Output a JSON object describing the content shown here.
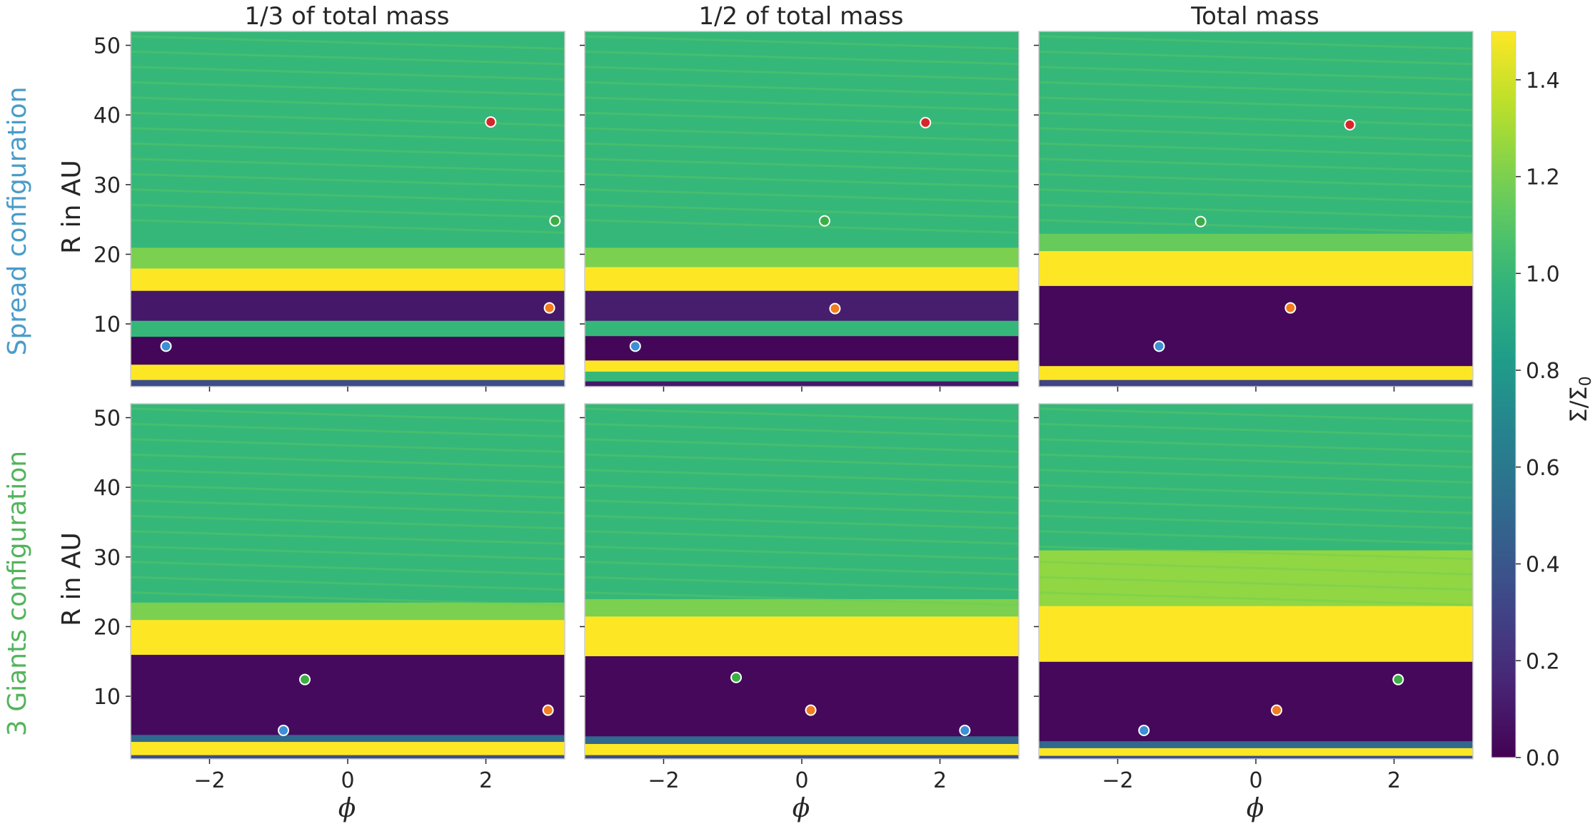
{
  "chart_data": {
    "type": "heatmap",
    "colormap": "viridis",
    "columns": [
      "1/3 of total mass",
      "1/2 of total mass",
      "Total mass"
    ],
    "rows": [
      {
        "label": "Spread configuration",
        "color": "#4a9cc9"
      },
      {
        "label": "3 Giants configuration",
        "color": "#54b35c"
      }
    ],
    "xlabel": "ϕ",
    "ylabel": "R in AU",
    "xlim": [
      -3.1416,
      3.1416
    ],
    "ylim": [
      1,
      52
    ],
    "xticks": [
      {
        "value": -2,
        "label": "−2"
      },
      {
        "value": 0,
        "label": "0"
      },
      {
        "value": 2,
        "label": "2"
      }
    ],
    "yticks": [
      {
        "value": 10,
        "label": "10"
      },
      {
        "value": 20,
        "label": "20"
      },
      {
        "value": 30,
        "label": "30"
      },
      {
        "value": 40,
        "label": "40"
      },
      {
        "value": 50,
        "label": "50"
      }
    ],
    "colorbar": {
      "label": "Σ/Σ",
      "label_sub": "0",
      "range": [
        0,
        1.5
      ],
      "ticks": [
        {
          "value": 0.0,
          "label": "0.0"
        },
        {
          "value": 0.2,
          "label": "0.2"
        },
        {
          "value": 0.4,
          "label": "0.4"
        },
        {
          "value": 0.6,
          "label": "0.6"
        },
        {
          "value": 0.8,
          "label": "0.8"
        },
        {
          "value": 1.0,
          "label": "1.0"
        },
        {
          "value": 1.2,
          "label": "1.2"
        },
        {
          "value": 1.4,
          "label": "1.4"
        }
      ]
    },
    "planet_colors": {
      "blue": "#3d8fd6",
      "orange": "#f27d1f",
      "green": "#3dae45",
      "red": "#d62728"
    },
    "panels": [
      {
        "row": 0,
        "col": 0,
        "bands": [
          {
            "r": [
              1,
              2
            ],
            "v": 0.35
          },
          {
            "r": [
              2,
              4.2
            ],
            "v": 1.55
          },
          {
            "r": [
              4.2,
              8.2
            ],
            "v": 0.02
          },
          {
            "r": [
              8.2,
              10.5
            ],
            "v": 1.0
          },
          {
            "r": [
              10.5,
              14.8
            ],
            "v": 0.1
          },
          {
            "r": [
              14.8,
              18
            ],
            "v": 1.55
          },
          {
            "r": [
              18,
              21
            ],
            "v": 1.2
          },
          {
            "r": [
              21,
              52
            ],
            "v": 1.0
          }
        ],
        "planets": [
          {
            "phi": -2.63,
            "r": 6.8,
            "color": "blue"
          },
          {
            "phi": 2.92,
            "r": 12.3,
            "color": "orange"
          },
          {
            "phi": 3.0,
            "r": 24.8,
            "color": "green"
          },
          {
            "phi": 2.07,
            "r": 39.0,
            "color": "red"
          }
        ]
      },
      {
        "row": 0,
        "col": 1,
        "bands": [
          {
            "r": [
              1,
              1.8
            ],
            "v": 0.1
          },
          {
            "r": [
              1.8,
              3.2
            ],
            "v": 1.0
          },
          {
            "r": [
              3.2,
              4.8
            ],
            "v": 1.55
          },
          {
            "r": [
              4.8,
              8.3
            ],
            "v": 0.02
          },
          {
            "r": [
              8.3,
              10.5
            ],
            "v": 1.0
          },
          {
            "r": [
              10.5,
              14.8
            ],
            "v": 0.12
          },
          {
            "r": [
              14.8,
              18.2
            ],
            "v": 1.55
          },
          {
            "r": [
              18.2,
              21
            ],
            "v": 1.2
          },
          {
            "r": [
              21,
              52
            ],
            "v": 1.0
          }
        ],
        "planets": [
          {
            "phi": -2.41,
            "r": 6.8,
            "color": "blue"
          },
          {
            "phi": 0.48,
            "r": 12.2,
            "color": "orange"
          },
          {
            "phi": 0.33,
            "r": 24.8,
            "color": "green"
          },
          {
            "phi": 1.79,
            "r": 38.9,
            "color": "red"
          }
        ]
      },
      {
        "row": 0,
        "col": 2,
        "bands": [
          {
            "r": [
              1,
              2
            ],
            "v": 0.3
          },
          {
            "r": [
              2,
              4
            ],
            "v": 1.55
          },
          {
            "r": [
              4,
              15.5
            ],
            "v": 0.03
          },
          {
            "r": [
              15.5,
              20.5
            ],
            "v": 1.55
          },
          {
            "r": [
              20.5,
              23
            ],
            "v": 1.15
          },
          {
            "r": [
              23,
              52
            ],
            "v": 1.0
          }
        ],
        "planets": [
          {
            "phi": -1.4,
            "r": 6.8,
            "color": "blue"
          },
          {
            "phi": 0.5,
            "r": 12.3,
            "color": "orange"
          },
          {
            "phi": -0.8,
            "r": 24.7,
            "color": "green"
          },
          {
            "phi": 1.36,
            "r": 38.6,
            "color": "red"
          }
        ]
      },
      {
        "row": 1,
        "col": 0,
        "bands": [
          {
            "r": [
              1,
              1.6
            ],
            "v": 0.35
          },
          {
            "r": [
              1.6,
              3.5
            ],
            "v": 1.55
          },
          {
            "r": [
              3.5,
              4.5
            ],
            "v": 0.5
          },
          {
            "r": [
              4.5,
              16
            ],
            "v": 0.04
          },
          {
            "r": [
              16,
              21
            ],
            "v": 1.55
          },
          {
            "r": [
              21,
              23.5
            ],
            "v": 1.2
          },
          {
            "r": [
              23.5,
              52
            ],
            "v": 1.0
          }
        ],
        "planets": [
          {
            "phi": -0.93,
            "r": 5.1,
            "color": "blue"
          },
          {
            "phi": 2.9,
            "r": 8.0,
            "color": "orange"
          },
          {
            "phi": -0.62,
            "r": 12.4,
            "color": "green"
          }
        ]
      },
      {
        "row": 1,
        "col": 1,
        "bands": [
          {
            "r": [
              1,
              1.6
            ],
            "v": 0.35
          },
          {
            "r": [
              1.6,
              3.2
            ],
            "v": 1.55
          },
          {
            "r": [
              3.2,
              4.3
            ],
            "v": 0.5
          },
          {
            "r": [
              4.3,
              15.8
            ],
            "v": 0.03
          },
          {
            "r": [
              15.8,
              21.5
            ],
            "v": 1.55
          },
          {
            "r": [
              21.5,
              24
            ],
            "v": 1.2
          },
          {
            "r": [
              24,
              52
            ],
            "v": 1.0
          }
        ],
        "planets": [
          {
            "phi": 2.36,
            "r": 5.1,
            "color": "blue"
          },
          {
            "phi": 0.13,
            "r": 8.0,
            "color": "orange"
          },
          {
            "phi": -0.95,
            "r": 12.7,
            "color": "green"
          }
        ]
      },
      {
        "row": 1,
        "col": 2,
        "bands": [
          {
            "r": [
              1,
              1.5
            ],
            "v": 0.35
          },
          {
            "r": [
              1.5,
              2.6
            ],
            "v": 1.55
          },
          {
            "r": [
              2.6,
              3.6
            ],
            "v": 0.5
          },
          {
            "r": [
              3.6,
              15
            ],
            "v": 0.03
          },
          {
            "r": [
              15,
              23
            ],
            "v": 1.55
          },
          {
            "r": [
              23,
              31
            ],
            "v": 1.25
          },
          {
            "r": [
              31,
              52
            ],
            "v": 1.0
          }
        ],
        "planets": [
          {
            "phi": -1.62,
            "r": 5.1,
            "color": "blue"
          },
          {
            "phi": 0.3,
            "r": 8.0,
            "color": "orange"
          },
          {
            "phi": 2.06,
            "r": 12.4,
            "color": "green"
          }
        ]
      }
    ]
  }
}
